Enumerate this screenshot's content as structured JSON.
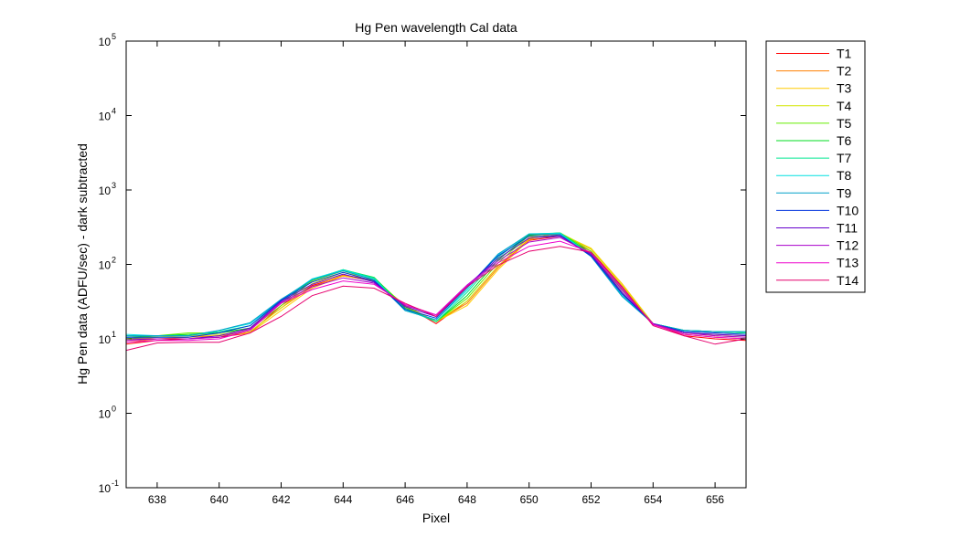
{
  "chart_data": {
    "type": "line",
    "title": "Hg Pen wavelength Cal data",
    "xlabel": "Pixel",
    "ylabel": "Hg Pen data (ADFU/sec) - dark subtracted",
    "xlim": [
      637,
      657
    ],
    "ylim": [
      0.1,
      100000
    ],
    "yscale": "log",
    "grid": false,
    "legend_position": "outside-top-right",
    "x_ticks": [
      638,
      640,
      642,
      644,
      646,
      648,
      650,
      652,
      654,
      656
    ],
    "x_tick_labels": [
      "638",
      "640",
      "642",
      "644",
      "646",
      "648",
      "650",
      "652",
      "654",
      "656"
    ],
    "y_ticks": [
      0.1,
      1,
      10,
      100,
      1000,
      10000,
      100000
    ],
    "y_tick_bases": [
      "10",
      "10",
      "10",
      "10",
      "10",
      "10",
      "10"
    ],
    "y_tick_exponents": [
      "-1",
      "0",
      "1",
      "2",
      "3",
      "4",
      "5"
    ],
    "x": [
      637,
      638,
      639,
      640,
      641,
      642,
      643,
      644,
      645,
      646,
      647,
      648,
      649,
      650,
      651,
      652,
      653,
      654,
      655,
      656,
      657
    ],
    "series": [
      {
        "name": "T1",
        "color": "#ff0000",
        "values": [
          8.5,
          9.5,
          10,
          10.5,
          12,
          28,
          52,
          70,
          60,
          28,
          16,
          32,
          95,
          210,
          240,
          150,
          50,
          16,
          11,
          10,
          9.5
        ]
      },
      {
        "name": "T2",
        "color": "#ff7f00",
        "values": [
          9,
          10,
          10.5,
          11,
          12.5,
          26,
          50,
          72,
          62,
          28,
          17,
          30,
          90,
          220,
          255,
          160,
          55,
          16,
          11.5,
          10.5,
          10
        ]
      },
      {
        "name": "T3",
        "color": "#ffcc00",
        "values": [
          9.5,
          10.5,
          11,
          11,
          12,
          24,
          48,
          70,
          60,
          27,
          17,
          28,
          85,
          215,
          260,
          165,
          55,
          16,
          12,
          11,
          10.5
        ]
      },
      {
        "name": "T4",
        "color": "#d4e600",
        "values": [
          10,
          10.5,
          11.5,
          11.5,
          12.5,
          26,
          55,
          78,
          64,
          28,
          17,
          32,
          95,
          230,
          265,
          160,
          52,
          16,
          12,
          11.5,
          11
        ]
      },
      {
        "name": "T5",
        "color": "#66ee00",
        "values": [
          10,
          11,
          12,
          12,
          13.5,
          28,
          60,
          82,
          66,
          27,
          17,
          35,
          105,
          245,
          265,
          150,
          46,
          16,
          13,
          12.5,
          12
        ]
      },
      {
        "name": "T6",
        "color": "#00dd22",
        "values": [
          10.5,
          11,
          11.5,
          12,
          14,
          30,
          62,
          85,
          67,
          26,
          17,
          38,
          115,
          250,
          265,
          140,
          42,
          16,
          13,
          12.5,
          12
        ]
      },
      {
        "name": "T7",
        "color": "#00e890",
        "values": [
          11,
          11,
          11,
          12.5,
          15,
          32,
          63,
          85,
          66,
          25,
          17,
          42,
          125,
          255,
          265,
          135,
          40,
          16,
          13,
          12.5,
          12
        ]
      },
      {
        "name": "T8",
        "color": "#00e0e0",
        "values": [
          11.5,
          11,
          11,
          13,
          16,
          33,
          64,
          84,
          64,
          24,
          18,
          45,
          135,
          258,
          262,
          130,
          38,
          16,
          13,
          12.5,
          12.5
        ]
      },
      {
        "name": "T9",
        "color": "#00a0c8",
        "values": [
          11,
          11,
          11,
          13,
          16.5,
          34,
          62,
          82,
          62,
          24,
          18,
          48,
          138,
          255,
          255,
          128,
          37,
          16,
          13,
          12.5,
          12.5
        ]
      },
      {
        "name": "T10",
        "color": "#0033dd",
        "values": [
          10.5,
          10.5,
          10.5,
          12,
          15,
          33,
          58,
          78,
          60,
          25,
          19,
          50,
          130,
          240,
          245,
          130,
          40,
          16,
          12.5,
          12,
          11.5
        ]
      },
      {
        "name": "T11",
        "color": "#6600cc",
        "values": [
          10,
          10,
          10,
          11,
          14,
          32,
          54,
          74,
          58,
          27,
          20,
          52,
          120,
          225,
          240,
          135,
          42,
          16,
          12,
          11.5,
          11
        ]
      },
      {
        "name": "T12",
        "color": "#aa00cc",
        "values": [
          9.5,
          10,
          10,
          10.5,
          13.5,
          31,
          50,
          66,
          56,
          28,
          21,
          53,
          112,
          200,
          230,
          140,
          45,
          16,
          12,
          11,
          10.5
        ]
      },
      {
        "name": "T13",
        "color": "#ee00cc",
        "values": [
          9,
          9.5,
          9.5,
          10,
          13,
          30,
          46,
          60,
          54,
          29,
          21,
          52,
          105,
          175,
          205,
          145,
          48,
          15.5,
          11.5,
          10.5,
          10
        ]
      },
      {
        "name": "T14",
        "color": "#e6006e",
        "values": [
          7,
          8.8,
          9,
          9,
          12,
          20,
          38,
          51,
          48,
          30,
          20,
          50,
          98,
          150,
          175,
          145,
          50,
          15,
          11,
          8.5,
          10
        ]
      }
    ]
  }
}
